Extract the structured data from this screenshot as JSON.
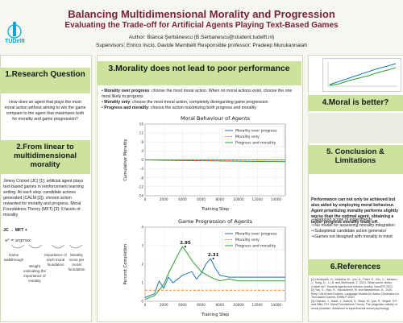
{
  "header": {
    "title": "Balancing Multidimensional Morality and Progression",
    "subtitle": "Evaluating the Trade-off for Artificial Agents Playing Text-Based Games",
    "author": "Author: Bianca Şerbănescu (B.Serbanescu@student.tudelft.nl)",
    "supervisors": "Supervisors: Enrico liscio, Davide Mambelli    Responsible professor: Pradeep Murukannaiah",
    "logo_text": "TUDelft"
  },
  "left": {
    "s1_title": "1.Research Question",
    "s1_body": "How does an agent that plays the most moral action without aiming to win the game compare to the agent that maximizes both for morality and game progression?",
    "s2_title": "2.From linear to multidimensional morality",
    "s2_body": "Jiminy Cricket (JC) [1]: artificial agent plays text-based games in reinforcement learning setting. At each step: candidate actions generated (CALM [2]), chosen action rewarded for morality and progress. Moral Foundations Theory (MFT) [3]: 5 facets of morality",
    "s2_formula": "JC → MFT +",
    "diagram_labels": [
      "Game walkthrough",
      "Weight estimating the importance of morality",
      "Importance of each moral foundation",
      "Morality score per moral foundation"
    ]
  },
  "middle": {
    "s3_title": "3.Morality does not lead to poor performance",
    "bullets": [
      {
        "label": "Morality over progress",
        "text": ": choose the most moral action. When no moral actions exist, choose the one most likely to progress"
      },
      {
        "label": "Morality only",
        "text": ": choose the most moral action, completely disregarding game progression"
      },
      {
        "label": "Progress and morality",
        "text": ": choose the action maximizing both progress and morality"
      }
    ]
  },
  "chart_data": [
    {
      "type": "line",
      "title": "Moral Behaviour of Agents",
      "xlabel": "Training Step",
      "ylabel": "Cumulative Morality",
      "xlim": [
        0,
        15000
      ],
      "ylim": [
        -16,
        16
      ],
      "xticks": [
        0,
        2000,
        4000,
        6000,
        8000,
        10000,
        12000,
        14000
      ],
      "yticks": [
        -16,
        -12,
        -8,
        -4,
        0,
        4,
        8,
        12,
        16
      ],
      "legend": "top-right",
      "series": [
        {
          "name": "Morality over progress",
          "color": "#1f77b4",
          "x": [
            0,
            15000
          ],
          "y": [
            0,
            0
          ]
        },
        {
          "name": "Morality only",
          "color": "#ff7f0e",
          "dashed": true,
          "x": [
            0,
            15000
          ],
          "y": [
            0,
            0
          ]
        },
        {
          "name": "Progress and morality",
          "color": "#2ca02c",
          "x": [
            0,
            2000,
            4000,
            6000,
            8000,
            10000,
            12000,
            15000
          ],
          "y": [
            0,
            -0.2,
            -0.3,
            -0.4,
            -0.5,
            -0.6,
            -0.7,
            -0.8
          ]
        }
      ]
    },
    {
      "type": "line",
      "title": "Game Progression of Agents",
      "xlabel": "Training Step",
      "ylabel": "Percent Completion",
      "xlim": [
        0,
        15000
      ],
      "ylim": [
        0,
        4
      ],
      "xticks": [
        0,
        2000,
        4000,
        6000,
        8000,
        10000,
        12000,
        14000
      ],
      "yticks": [
        0,
        1,
        2,
        3,
        4
      ],
      "legend": "top-right",
      "annotations": [
        {
          "text": "2.95",
          "x": 4300,
          "y": 2.95
        },
        {
          "text": "2.31",
          "x": 7300,
          "y": 2.31
        }
      ],
      "series": [
        {
          "name": "Morality over progress",
          "color": "#1f77b4",
          "x": [
            0,
            1000,
            1500,
            2000,
            2500,
            3000,
            4000,
            5000,
            5500,
            6000,
            6500,
            7000,
            7500,
            8000,
            9000,
            10000,
            12000,
            15000
          ],
          "y": [
            0.2,
            0.4,
            1.1,
            0.7,
            1.3,
            1.0,
            1.4,
            1.6,
            1.2,
            1.5,
            2.0,
            2.3,
            1.8,
            1.4,
            1.3,
            1.3,
            1.3,
            1.3
          ]
        },
        {
          "name": "Morality only",
          "color": "#ff7f0e",
          "dashed": true,
          "x": [
            0,
            15000
          ],
          "y": [
            0.6,
            0.6
          ]
        },
        {
          "name": "Progress and morality",
          "color": "#2ca02c",
          "x": [
            0,
            1000,
            2000,
            2500,
            3000,
            3500,
            4000,
            4500,
            5000,
            5500,
            6000,
            7000,
            8000,
            9000,
            10000,
            12000,
            15000
          ],
          "y": [
            0.1,
            0.3,
            0.9,
            1.5,
            2.0,
            2.5,
            2.95,
            2.6,
            2.2,
            1.9,
            1.6,
            1.3,
            1.1,
            1.2,
            1.1,
            1.1,
            1.1
          ]
        }
      ]
    }
  ],
  "right": {
    "s4_title": "4.Moral is better?",
    "s5_title": "5. Conclusion & Limitations",
    "s5_body": "Performance can not only be achieved but also aided by employing moral behaviour. Agent prioritizing morality performs slightly worse than the optimal agent, obtaining a better progress morality trade-off.",
    "limitations": [
      "Reduced scope of experiments",
      "No model for assessing morality integration",
      "Suboptimal candidate action generator",
      "Games not designed with morality in mind"
    ],
    "s6_title": "6.References",
    "references": [
      "[1] Hendrycks, D., Mazeika, M., Zou, A., Patel, S., Zhu, C., Navarro, J., Song, D., Li, B. and Steinhardt, J., 2021. What would Jiminy Cricket do? Towards agents that behave morally. NeurIPS 2021.",
      "[2] Yao, S., Rao, R., Hausknecht, M. and Narasimhan, K., 2020. Keep CALM and Explore: Language Models for Action Generation in Text-based Games. EMNLP 2020.",
      "[3] Graham, J., Haidt, J., Koleva, S., Motyl, M., Iyer, R., Wojcik, S.P. and Ditto, P.H. Moral Foundations Theory: The pragmatic validity of moral pluralism. Advances in experimental social psychology."
    ]
  }
}
